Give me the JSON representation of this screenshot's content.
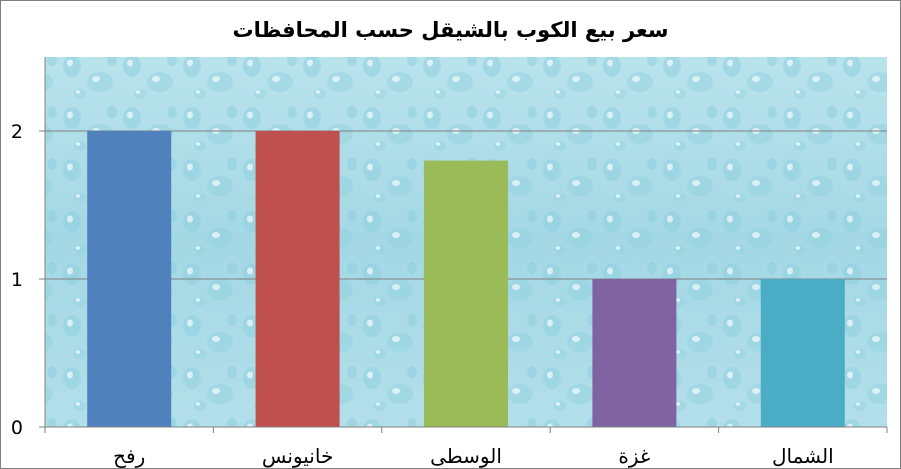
{
  "chart_data": {
    "type": "bar",
    "title": "سعر بيع الكوب بالشيقل حسب المحافظات",
    "categories": [
      "رفح",
      "خانيونس",
      "الوسطى",
      "غزة",
      "الشمال"
    ],
    "values": [
      2,
      2,
      1.8,
      1,
      1
    ],
    "colors": [
      "#4f81bd",
      "#c0504d",
      "#9bbb59",
      "#8064a2",
      "#4bacc6"
    ],
    "y_ticks": [
      "0",
      "1",
      "2"
    ],
    "ylim": [
      0,
      2.5
    ],
    "grid": true,
    "legend": "none",
    "plot_background": "water-droplets"
  }
}
